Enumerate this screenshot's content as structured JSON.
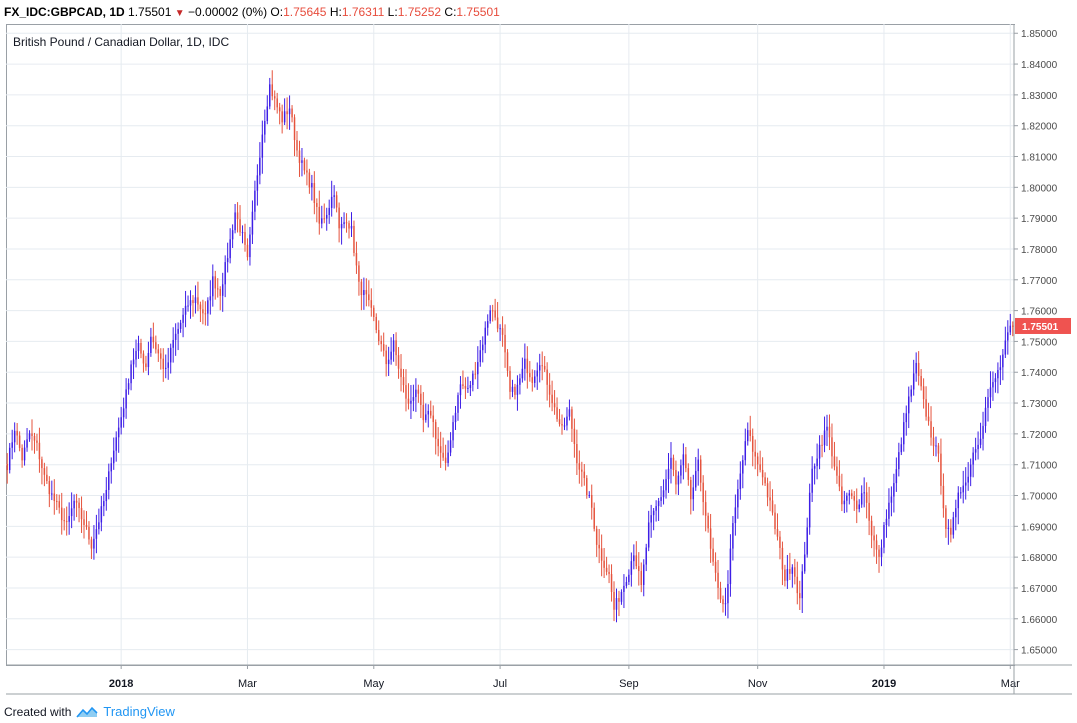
{
  "header": {
    "symbol": "FX_IDC:GBPCAD, 1D",
    "last": "1.75501",
    "change": "−0.00002 (0%)",
    "o_label": "O:",
    "o": "1.75645",
    "h_label": "H:",
    "h": "1.76311",
    "l_label": "L:",
    "l": "1.75252",
    "c_label": "C:",
    "c": "1.75501"
  },
  "footer": {
    "created_with": "Created with",
    "brand": "TradingView"
  },
  "colors": {
    "up": "#3d1ee6",
    "down": "#e5533d",
    "grid": "#e6ebf0",
    "price_tag": "#ef5350"
  },
  "chart_data": {
    "type": "candlestick",
    "title": "British Pound / Canadian Dollar, 1D, IDC",
    "current_price": 1.75501,
    "current_price_label": "1.75501",
    "ylim": [
      1.645,
      1.853
    ],
    "y_ticks": [
      1.65,
      1.66,
      1.67,
      1.68,
      1.69,
      1.7,
      1.71,
      1.72,
      1.73,
      1.74,
      1.75,
      1.76,
      1.77,
      1.78,
      1.79,
      1.8,
      1.81,
      1.82,
      1.83,
      1.84,
      1.85
    ],
    "y_tick_labels": [
      "1.65000",
      "1.66000",
      "1.67000",
      "1.68000",
      "1.69000",
      "1.70000",
      "1.71000",
      "1.72000",
      "1.73000",
      "1.74000",
      "1.75000",
      "1.76000",
      "1.77000",
      "1.78000",
      "1.79000",
      "1.80000",
      "1.81000",
      "1.82000",
      "1.83000",
      "1.84000",
      "1.85000"
    ],
    "x_ticks": [
      {
        "label": "2018",
        "index": 46,
        "bold": true
      },
      {
        "label": "Mar",
        "index": 97,
        "bold": false
      },
      {
        "label": "May",
        "index": 148,
        "bold": false
      },
      {
        "label": "Jul",
        "index": 199,
        "bold": false
      },
      {
        "label": "Sep",
        "index": 251,
        "bold": false
      },
      {
        "label": "Nov",
        "index": 303,
        "bold": false
      },
      {
        "label": "2019",
        "index": 354,
        "bold": true
      },
      {
        "label": "Mar",
        "index": 405,
        "bold": false
      }
    ],
    "x_count": 407,
    "close_anchors": [
      [
        0,
        1.71
      ],
      [
        3,
        1.722
      ],
      [
        6,
        1.712
      ],
      [
        9,
        1.72
      ],
      [
        12,
        1.716
      ],
      [
        15,
        1.706
      ],
      [
        18,
        1.7
      ],
      [
        21,
        1.695
      ],
      [
        24,
        1.69
      ],
      [
        27,
        1.698
      ],
      [
        31,
        1.691
      ],
      [
        34,
        1.684
      ],
      [
        37,
        1.692
      ],
      [
        40,
        1.701
      ],
      [
        42,
        1.712
      ],
      [
        45,
        1.722
      ],
      [
        48,
        1.733
      ],
      [
        50,
        1.743
      ],
      [
        53,
        1.748
      ],
      [
        56,
        1.742
      ],
      [
        58,
        1.752
      ],
      [
        61,
        1.746
      ],
      [
        64,
        1.74
      ],
      [
        67,
        1.75
      ],
      [
        70,
        1.756
      ],
      [
        73,
        1.762
      ],
      [
        76,
        1.764
      ],
      [
        80,
        1.758
      ],
      [
        83,
        1.77
      ],
      [
        86,
        1.766
      ],
      [
        89,
        1.778
      ],
      [
        92,
        1.792
      ],
      [
        95,
        1.784
      ],
      [
        97,
        1.776
      ],
      [
        100,
        1.798
      ],
      [
        103,
        1.818
      ],
      [
        106,
        1.833
      ],
      [
        108,
        1.828
      ],
      [
        111,
        1.822
      ],
      [
        114,
        1.826
      ],
      [
        117,
        1.812
      ],
      [
        120,
        1.805
      ],
      [
        123,
        1.8
      ],
      [
        126,
        1.788
      ],
      [
        129,
        1.792
      ],
      [
        132,
        1.799
      ],
      [
        134,
        1.786
      ],
      [
        137,
        1.79
      ],
      [
        139,
        1.786
      ],
      [
        142,
        1.768
      ],
      [
        145,
        1.764
      ],
      [
        148,
        1.757
      ],
      [
        150,
        1.751
      ],
      [
        153,
        1.743
      ],
      [
        156,
        1.749
      ],
      [
        159,
        1.738
      ],
      [
        162,
        1.729
      ],
      [
        165,
        1.735
      ],
      [
        168,
        1.724
      ],
      [
        171,
        1.727
      ],
      [
        174,
        1.716
      ],
      [
        177,
        1.709
      ],
      [
        180,
        1.724
      ],
      [
        183,
        1.736
      ],
      [
        186,
        1.734
      ],
      [
        189,
        1.741
      ],
      [
        192,
        1.75
      ],
      [
        195,
        1.761
      ],
      [
        197,
        1.758
      ],
      [
        200,
        1.751
      ],
      [
        203,
        1.733
      ],
      [
        206,
        1.735
      ],
      [
        209,
        1.743
      ],
      [
        212,
        1.738
      ],
      [
        215,
        1.744
      ],
      [
        218,
        1.737
      ],
      [
        221,
        1.728
      ],
      [
        224,
        1.721
      ],
      [
        227,
        1.727
      ],
      [
        230,
        1.712
      ],
      [
        233,
        1.704
      ],
      [
        236,
        1.696
      ],
      [
        238,
        1.685
      ],
      [
        240,
        1.68
      ],
      [
        243,
        1.674
      ],
      [
        245,
        1.663
      ],
      [
        248,
        1.669
      ],
      [
        251,
        1.676
      ],
      [
        253,
        1.682
      ],
      [
        256,
        1.67
      ],
      [
        259,
        1.69
      ],
      [
        262,
        1.696
      ],
      [
        265,
        1.702
      ],
      [
        268,
        1.712
      ],
      [
        270,
        1.703
      ],
      [
        273,
        1.712
      ],
      [
        276,
        1.699
      ],
      [
        279,
        1.71
      ],
      [
        282,
        1.694
      ],
      [
        284,
        1.682
      ],
      [
        287,
        1.669
      ],
      [
        290,
        1.664
      ],
      [
        293,
        1.69
      ],
      [
        296,
        1.707
      ],
      [
        299,
        1.721
      ],
      [
        302,
        1.712
      ],
      [
        305,
        1.707
      ],
      [
        308,
        1.697
      ],
      [
        311,
        1.686
      ],
      [
        314,
        1.673
      ],
      [
        317,
        1.678
      ],
      [
        320,
        1.666
      ],
      [
        322,
        1.682
      ],
      [
        325,
        1.708
      ],
      [
        328,
        1.716
      ],
      [
        331,
        1.722
      ],
      [
        334,
        1.71
      ],
      [
        337,
        1.697
      ],
      [
        340,
        1.7
      ],
      [
        343,
        1.697
      ],
      [
        346,
        1.702
      ],
      [
        349,
        1.688
      ],
      [
        352,
        1.679
      ],
      [
        355,
        1.694
      ],
      [
        358,
        1.703
      ],
      [
        361,
        1.718
      ],
      [
        364,
        1.731
      ],
      [
        367,
        1.742
      ],
      [
        370,
        1.73
      ],
      [
        373,
        1.72
      ],
      [
        376,
        1.712
      ],
      [
        379,
        1.69
      ],
      [
        381,
        1.686
      ],
      [
        384,
        1.702
      ],
      [
        387,
        1.704
      ],
      [
        390,
        1.714
      ],
      [
        393,
        1.72
      ],
      [
        396,
        1.732
      ],
      [
        398,
        1.736
      ],
      [
        401,
        1.742
      ],
      [
        404,
        1.752
      ],
      [
        406,
        1.755
      ]
    ]
  }
}
